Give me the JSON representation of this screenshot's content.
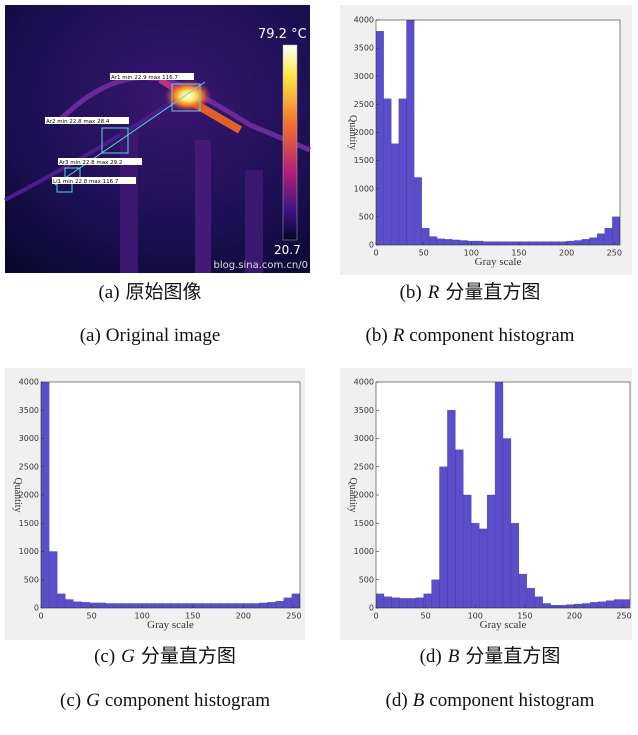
{
  "image": {
    "scale_max": "79.2 °C",
    "scale_min": "20.7",
    "watermark": "blog.sina.com.cn/0",
    "areas": [
      "Ar1 min 22.9 max 116.7",
      "Ar2 min 22.8 max 28.4",
      "Ar3 min 22.8 max 29.2",
      "Li1 min 22.8 max 116.7"
    ]
  },
  "captions": [
    {
      "label": "(a)",
      "zh": "原始图像",
      "en": "Original image"
    },
    {
      "label": "(b)",
      "var": "R",
      "zh": "分量直方图",
      "en": "component histogram"
    },
    {
      "label": "(c)",
      "var": "G",
      "zh": "分量直方图",
      "en": "component histogram"
    },
    {
      "label": "(d)",
      "var": "B",
      "zh": "分量直方图",
      "en": "component histogram"
    }
  ],
  "chart_data": [
    {
      "type": "histogram",
      "xlabel": "Gray scale",
      "ylabel": "Quantity",
      "color": "#5a4fc8",
      "bins": [
        0,
        8,
        16,
        24,
        32,
        40,
        48,
        56,
        64,
        72,
        80,
        88,
        96,
        104,
        112,
        120,
        128,
        136,
        144,
        152,
        160,
        168,
        176,
        184,
        192,
        200,
        208,
        216,
        224,
        232,
        240,
        248,
        256
      ],
      "counts": [
        3800,
        2600,
        1800,
        2600,
        4000,
        1200,
        300,
        150,
        110,
        100,
        90,
        80,
        70,
        70,
        60,
        60,
        60,
        60,
        60,
        60,
        60,
        60,
        60,
        60,
        60,
        70,
        80,
        100,
        130,
        200,
        300,
        500
      ],
      "xlim": [
        0,
        256
      ],
      "ylim": [
        0,
        4000
      ],
      "xticks": [
        0,
        50,
        100,
        150,
        200,
        250
      ],
      "yticks": [
        0,
        500,
        1000,
        1500,
        2000,
        2500,
        3000,
        3500,
        4000
      ]
    },
    {
      "type": "histogram",
      "xlabel": "Gray scale",
      "ylabel": "Quantity",
      "color": "#5a4fc8",
      "bins": [
        0,
        8,
        16,
        24,
        32,
        40,
        48,
        56,
        64,
        72,
        80,
        88,
        96,
        104,
        112,
        120,
        128,
        136,
        144,
        152,
        160,
        168,
        176,
        184,
        192,
        200,
        208,
        216,
        224,
        232,
        240,
        248,
        256
      ],
      "counts": [
        4000,
        1000,
        250,
        150,
        110,
        100,
        90,
        90,
        80,
        80,
        80,
        80,
        80,
        80,
        80,
        80,
        80,
        80,
        80,
        80,
        80,
        80,
        80,
        80,
        80,
        80,
        80,
        90,
        100,
        120,
        180,
        250
      ],
      "xlim": [
        0,
        256
      ],
      "ylim": [
        0,
        4000
      ],
      "xticks": [
        0,
        50,
        100,
        150,
        200,
        250
      ],
      "yticks": [
        0,
        500,
        1000,
        1500,
        2000,
        2500,
        3000,
        3500,
        4000
      ]
    },
    {
      "type": "histogram",
      "xlabel": "Gray scale",
      "ylabel": "Quantity",
      "color": "#5a4fc8",
      "bins": [
        0,
        8,
        16,
        24,
        32,
        40,
        48,
        56,
        64,
        72,
        80,
        88,
        96,
        104,
        112,
        120,
        128,
        136,
        144,
        152,
        160,
        168,
        176,
        184,
        192,
        200,
        208,
        216,
        224,
        232,
        240,
        248,
        256
      ],
      "counts": [
        250,
        200,
        180,
        170,
        170,
        180,
        250,
        500,
        2500,
        3500,
        2800,
        2000,
        1500,
        1400,
        2000,
        4000,
        3000,
        1500,
        600,
        350,
        200,
        80,
        50,
        50,
        60,
        70,
        80,
        100,
        110,
        130,
        150,
        150
      ],
      "xlim": [
        0,
        256
      ],
      "ylim": [
        0,
        4000
      ],
      "xticks": [
        0,
        50,
        100,
        150,
        200,
        250
      ],
      "yticks": [
        0,
        500,
        1000,
        1500,
        2000,
        2500,
        3000,
        3500,
        4000
      ]
    }
  ]
}
